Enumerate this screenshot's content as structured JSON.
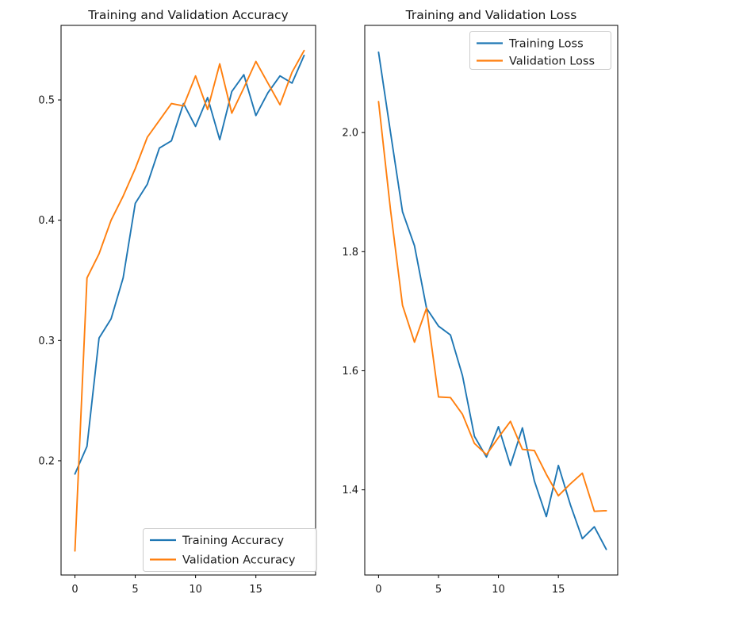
{
  "figure": {
    "background": "#ffffff",
    "colors": {
      "training": "#1f77b4",
      "validation": "#ff7f0e",
      "axis": "#000000",
      "legend_border": "#cccccc",
      "legend_background": "#ffffff"
    }
  },
  "chart_data": [
    {
      "type": "line",
      "title": "Training and Validation Accuracy",
      "xlabel": "",
      "ylabel": "",
      "grid": false,
      "legend_position": "lower right",
      "x": [
        0,
        1,
        2,
        3,
        4,
        5,
        6,
        7,
        8,
        9,
        10,
        11,
        12,
        13,
        14,
        15,
        16,
        17,
        18,
        19
      ],
      "xticks": [
        "0",
        "5",
        "10",
        "15"
      ],
      "yticks": [
        "0.2",
        "0.3",
        "0.4",
        "0.5"
      ],
      "xlim": [
        -1.15,
        19.95
      ],
      "ylim": [
        0.105,
        0.562
      ],
      "series": [
        {
          "name": "Training Accuracy",
          "color": "#1f77b4",
          "values": [
            0.189,
            0.212,
            0.302,
            0.318,
            0.352,
            0.414,
            0.43,
            0.46,
            0.466,
            0.497,
            0.478,
            0.502,
            0.467,
            0.507,
            0.521,
            0.487,
            0.506,
            0.52,
            0.514,
            0.537
          ]
        },
        {
          "name": "Validation Accuracy",
          "color": "#ff7f0e",
          "values": [
            0.125,
            0.352,
            0.372,
            0.4,
            0.42,
            0.443,
            0.469,
            0.483,
            0.497,
            0.495,
            0.52,
            0.492,
            0.53,
            0.489,
            0.51,
            0.532,
            0.514,
            0.496,
            0.523,
            0.541
          ]
        }
      ]
    },
    {
      "type": "line",
      "title": "Training and Validation Loss",
      "xlabel": "",
      "ylabel": "",
      "grid": false,
      "legend_position": "upper right",
      "x": [
        0,
        1,
        2,
        3,
        4,
        5,
        6,
        7,
        8,
        9,
        10,
        11,
        12,
        13,
        14,
        15,
        16,
        17,
        18,
        19
      ],
      "xticks": [
        "0",
        "5",
        "10",
        "15"
      ],
      "yticks": [
        "1.4",
        "1.6",
        "1.8",
        "2.0"
      ],
      "xlim": [
        -1.15,
        19.95
      ],
      "ylim": [
        1.257,
        2.18
      ],
      "series": [
        {
          "name": "Training Loss",
          "color": "#1f77b4",
          "values": [
            2.135,
            2.0,
            1.867,
            1.81,
            1.705,
            1.675,
            1.66,
            1.592,
            1.49,
            1.455,
            1.506,
            1.441,
            1.504,
            1.415,
            1.355,
            1.441,
            1.375,
            1.318,
            1.338,
            1.3
          ]
        },
        {
          "name": "Validation Loss",
          "color": "#ff7f0e",
          "values": [
            2.052,
            1.87,
            1.71,
            1.648,
            1.705,
            1.556,
            1.555,
            1.527,
            1.478,
            1.459,
            1.488,
            1.515,
            1.468,
            1.466,
            1.426,
            1.39,
            1.41,
            1.428,
            1.364,
            1.365
          ]
        }
      ]
    }
  ]
}
